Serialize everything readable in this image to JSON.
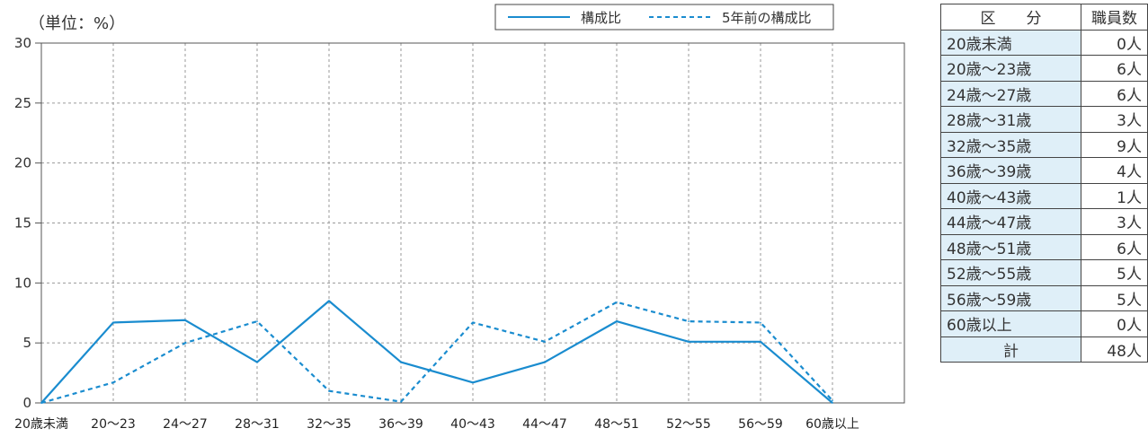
{
  "chart_data": {
    "type": "line",
    "unit_label": "（単位：%）",
    "categories": [
      "20歳未満",
      "20〜23",
      "24〜27",
      "28〜31",
      "32〜35",
      "36〜39",
      "40〜43",
      "44〜47",
      "48〜51",
      "52〜55",
      "56〜59",
      "60歳以上"
    ],
    "series": [
      {
        "name": "構成比",
        "style": "solid",
        "values": [
          0,
          6.7,
          6.9,
          3.4,
          8.5,
          3.4,
          1.7,
          3.4,
          6.8,
          5.1,
          5.1,
          0
        ]
      },
      {
        "name": "5年前の構成比",
        "style": "dashed",
        "values": [
          0,
          1.7,
          5.0,
          6.8,
          1.0,
          0.1,
          6.7,
          5.1,
          8.4,
          6.8,
          6.7,
          0.2
        ]
      }
    ],
    "ylim": [
      0,
      30
    ],
    "yticks": [
      0,
      5,
      10,
      15,
      20,
      25,
      30
    ],
    "grid": true,
    "legend_position": "top-right",
    "line_color": "#1a8ccf"
  },
  "table": {
    "header": [
      "区　　分",
      "職員数"
    ],
    "rows": [
      [
        "20歳未満",
        "0人"
      ],
      [
        "20歳〜23歳",
        "6人"
      ],
      [
        "24歳〜27歳",
        "6人"
      ],
      [
        "28歳〜31歳",
        "3人"
      ],
      [
        "32歳〜35歳",
        "9人"
      ],
      [
        "36歳〜39歳",
        "4人"
      ],
      [
        "40歳〜43歳",
        "1人"
      ],
      [
        "44歳〜47歳",
        "3人"
      ],
      [
        "48歳〜51歳",
        "6人"
      ],
      [
        "52歳〜55歳",
        "5人"
      ],
      [
        "56歳〜59歳",
        "5人"
      ],
      [
        "60歳以上",
        "0人"
      ]
    ],
    "total": [
      "計",
      "48人"
    ]
  }
}
